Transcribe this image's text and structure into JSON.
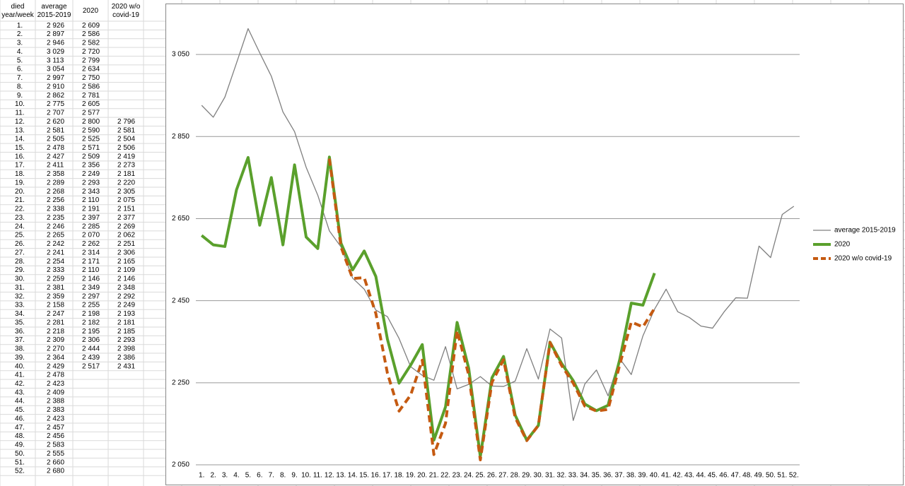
{
  "table": {
    "headers": [
      "died year/week",
      "average 2015-2019",
      "2020",
      "2020 w/o covid-19"
    ]
  },
  "chart_data": {
    "type": "line",
    "categories": [
      "1.",
      "2.",
      "3.",
      "4.",
      "5.",
      "6.",
      "7.",
      "8.",
      "9.",
      "10.",
      "11.",
      "12.",
      "13.",
      "14.",
      "15.",
      "16.",
      "17.",
      "18.",
      "19.",
      "20.",
      "21.",
      "22.",
      "23.",
      "24.",
      "25.",
      "26.",
      "27.",
      "28.",
      "29.",
      "30.",
      "31.",
      "32.",
      "33.",
      "34.",
      "35.",
      "36.",
      "37.",
      "38.",
      "39.",
      "40.",
      "41.",
      "42.",
      "43.",
      "44.",
      "45.",
      "46.",
      "47.",
      "48.",
      "49.",
      "50.",
      "51.",
      "52."
    ],
    "ylim": [
      2050,
      3150
    ],
    "yticks": [
      {
        "value": 2050,
        "label": "2 050"
      },
      {
        "value": 2250,
        "label": "2 250"
      },
      {
        "value": 2450,
        "label": "2 450"
      },
      {
        "value": 2650,
        "label": "2 650"
      },
      {
        "value": 2850,
        "label": "2 850"
      },
      {
        "value": 3050,
        "label": "3 050"
      }
    ],
    "grid": true,
    "legend": "right",
    "series": [
      {
        "name": "average 2015-2019",
        "color": "#7f7f7f",
        "width": 1.3,
        "dash": false,
        "values": [
          2926,
          2897,
          2946,
          3029,
          3113,
          3054,
          2997,
          2910,
          2862,
          2775,
          2707,
          2620,
          2581,
          2505,
          2478,
          2427,
          2411,
          2358,
          2289,
          2268,
          2256,
          2338,
          2235,
          2246,
          2265,
          2242,
          2241,
          2254,
          2333,
          2259,
          2381,
          2359,
          2158,
          2247,
          2281,
          2218,
          2309,
          2270,
          2364,
          2429,
          2478,
          2423,
          2409,
          2388,
          2383,
          2423,
          2457,
          2456,
          2583,
          2555,
          2660,
          2680
        ],
        "value_labels": [
          "2 926",
          "2 897",
          "2 946",
          "3 029",
          "3 113",
          "3 054",
          "2 997",
          "2 910",
          "2 862",
          "2 775",
          "2 707",
          "2 620",
          "2 581",
          "2 505",
          "2 478",
          "2 427",
          "2 411",
          "2 358",
          "2 289",
          "2 268",
          "2 256",
          "2 338",
          "2 235",
          "2 246",
          "2 265",
          "2 242",
          "2 241",
          "2 254",
          "2 333",
          "2 259",
          "2 381",
          "2 359",
          "2 158",
          "2 247",
          "2 281",
          "2 218",
          "2 309",
          "2 270",
          "2 364",
          "2 429",
          "2 478",
          "2 423",
          "2 409",
          "2 388",
          "2 383",
          "2 423",
          "2 457",
          "2 456",
          "2 583",
          "2 555",
          "2 660",
          "2 680"
        ]
      },
      {
        "name": "2020",
        "color": "#5aa02c",
        "width": 4,
        "dash": false,
        "values": [
          2609,
          2586,
          2582,
          2720,
          2799,
          2634,
          2750,
          2586,
          2781,
          2605,
          2577,
          2800,
          2590,
          2525,
          2571,
          2509,
          2356,
          2249,
          2293,
          2343,
          2110,
          2191,
          2397,
          2285,
          2070,
          2262,
          2314,
          2171,
          2110,
          2146,
          2349,
          2297,
          2255,
          2198,
          2182,
          2195,
          2306,
          2444,
          2439,
          2517,
          null,
          null,
          null,
          null,
          null,
          null,
          null,
          null,
          null,
          null,
          null,
          null
        ],
        "value_labels": [
          "2 609",
          "2 586",
          "2 582",
          "2 720",
          "2 799",
          "2 634",
          "2 750",
          "2 586",
          "2 781",
          "2 605",
          "2 577",
          "2 800",
          "2 590",
          "2 525",
          "2 571",
          "2 509",
          "2 356",
          "2 249",
          "2 293",
          "2 343",
          "2 110",
          "2 191",
          "2 397",
          "2 285",
          "2 070",
          "2 262",
          "2 314",
          "2 171",
          "2 110",
          "2 146",
          "2 349",
          "2 297",
          "2 255",
          "2 198",
          "2 182",
          "2 195",
          "2 306",
          "2 444",
          "2 439",
          "2 517",
          null,
          null,
          null,
          null,
          null,
          null,
          null,
          null,
          null,
          null,
          null,
          null
        ]
      },
      {
        "name": "2020 w/o covid-19",
        "color": "#c55a11",
        "width": 4,
        "dash": true,
        "values": [
          null,
          null,
          null,
          null,
          null,
          null,
          null,
          null,
          null,
          null,
          null,
          2796,
          2581,
          2504,
          2506,
          2419,
          2273,
          2181,
          2220,
          2305,
          2075,
          2151,
          2377,
          2269,
          2062,
          2251,
          2306,
          2165,
          2109,
          2146,
          2348,
          2292,
          2249,
          2193,
          2181,
          2185,
          2293,
          2398,
          2386,
          2431,
          null,
          null,
          null,
          null,
          null,
          null,
          null,
          null,
          null,
          null,
          null,
          null
        ],
        "value_labels": [
          null,
          null,
          null,
          null,
          null,
          null,
          null,
          null,
          null,
          null,
          null,
          "2 796",
          "2 581",
          "2 504",
          "2 506",
          "2 419",
          "2 273",
          "2 181",
          "2 220",
          "2 305",
          "2 075",
          "2 151",
          "2 377",
          "2 269",
          "2 062",
          "2 251",
          "2 306",
          "2 165",
          "2 109",
          "2 146",
          "2 348",
          "2 292",
          "2 249",
          "2 193",
          "2 181",
          "2 185",
          "2 293",
          "2 398",
          "2 386",
          "2 431",
          null,
          null,
          null,
          null,
          null,
          null,
          null,
          null,
          null,
          null,
          null,
          null
        ]
      }
    ]
  }
}
